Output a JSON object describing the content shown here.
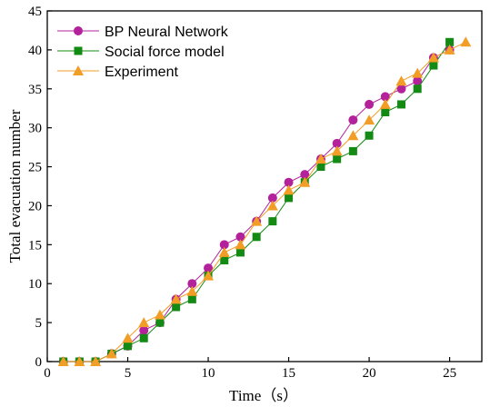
{
  "chart_data": {
    "type": "line",
    "xlabel": "Time（s）",
    "ylabel": "Total evacuation number",
    "xlim": [
      0,
      27
    ],
    "ylim": [
      0,
      45
    ],
    "xticks": [
      0,
      5,
      10,
      15,
      20,
      25
    ],
    "yticks": [
      0,
      5,
      10,
      15,
      20,
      25,
      30,
      35,
      40,
      45
    ],
    "legend_position": "top-left",
    "grid": false,
    "series": [
      {
        "name": "BP Neural Network",
        "color": "#b3219b",
        "marker": "circle",
        "x": [
          1,
          2,
          3,
          4,
          5,
          6,
          7,
          8,
          9,
          10,
          11,
          12,
          13,
          14,
          15,
          16,
          17,
          18,
          19,
          20,
          21,
          22,
          23,
          24,
          25
        ],
        "y": [
          0,
          0,
          0,
          1,
          2,
          4,
          5,
          8,
          10,
          12,
          15,
          16,
          18,
          21,
          23,
          24,
          26,
          28,
          31,
          33,
          34,
          35,
          36,
          39,
          40
        ]
      },
      {
        "name": "Social force model",
        "color": "#138a13",
        "marker": "square",
        "x": [
          1,
          2,
          3,
          4,
          5,
          6,
          7,
          8,
          9,
          10,
          11,
          12,
          13,
          14,
          15,
          16,
          17,
          18,
          19,
          20,
          21,
          22,
          23,
          24,
          25
        ],
        "y": [
          0,
          0,
          0,
          1,
          2,
          3,
          5,
          7,
          8,
          11,
          13,
          14,
          16,
          18,
          21,
          23,
          25,
          26,
          27,
          29,
          32,
          33,
          35,
          38,
          41
        ]
      },
      {
        "name": "Experiment",
        "color": "#f29d25",
        "marker": "triangle",
        "x": [
          1,
          2,
          3,
          4,
          5,
          6,
          7,
          8,
          9,
          10,
          11,
          12,
          13,
          14,
          15,
          16,
          17,
          18,
          19,
          20,
          21,
          22,
          23,
          24,
          25,
          26
        ],
        "y": [
          0,
          0,
          0,
          1,
          3,
          5,
          6,
          8,
          9,
          11,
          14,
          15,
          18,
          20,
          22,
          23,
          26,
          27,
          29,
          31,
          33,
          36,
          37,
          39,
          40,
          41
        ]
      }
    ]
  }
}
